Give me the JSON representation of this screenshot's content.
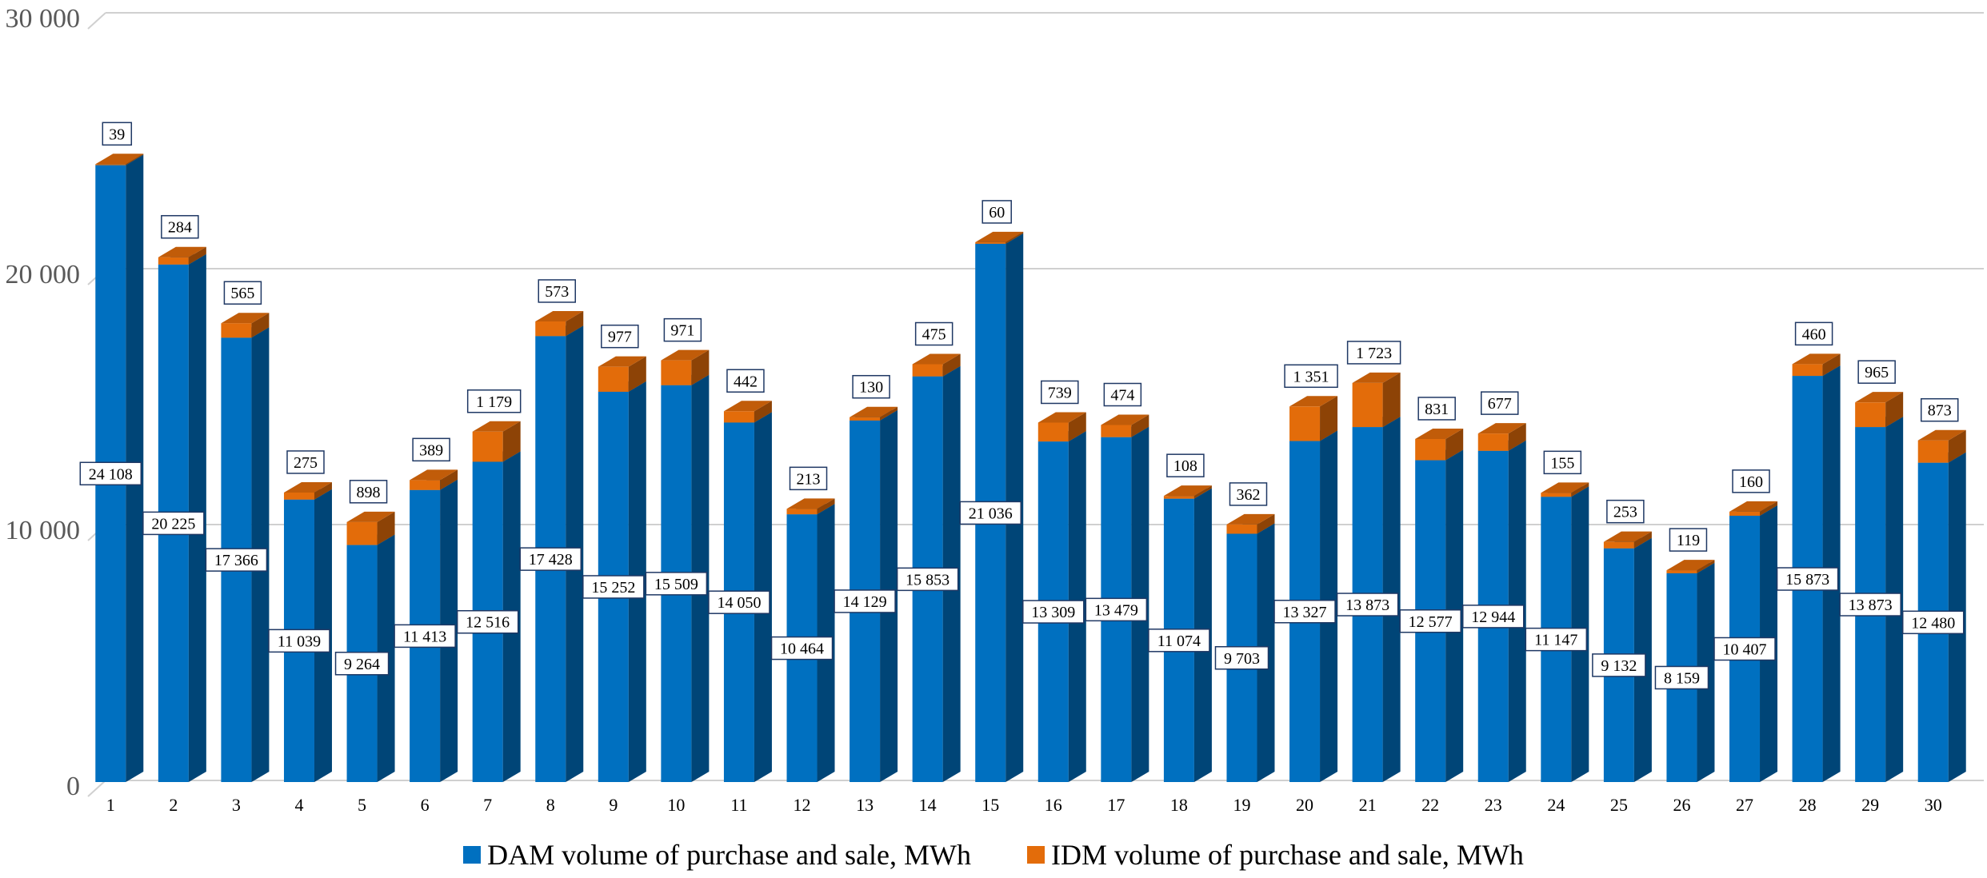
{
  "chart_data": {
    "type": "bar",
    "stacked": true,
    "style": "3d-column",
    "title": "",
    "xlabel": "",
    "ylabel": "",
    "ylim": [
      0,
      30000
    ],
    "yticks": [
      0,
      10000,
      20000,
      30000
    ],
    "ytick_labels": [
      "0",
      "10 000",
      "20 000",
      "30 000"
    ],
    "grid": true,
    "legend_position": "bottom",
    "categories": [
      "1",
      "2",
      "3",
      "4",
      "5",
      "6",
      "7",
      "8",
      "9",
      "10",
      "11",
      "12",
      "13",
      "14",
      "15",
      "16",
      "17",
      "18",
      "19",
      "20",
      "21",
      "22",
      "23",
      "24",
      "25",
      "26",
      "27",
      "28",
      "29",
      "30"
    ],
    "series": [
      {
        "name": "DAM volume of purchase and sale, MWh",
        "color": "#0070C0",
        "values": [
          24108,
          20225,
          17366,
          11039,
          9264,
          11413,
          12516,
          17428,
          15252,
          15509,
          14050,
          10464,
          14129,
          15853,
          21036,
          13309,
          13479,
          11074,
          9703,
          13327,
          13873,
          12577,
          12944,
          11147,
          9132,
          8159,
          10407,
          15873,
          13873,
          12480
        ],
        "labels": [
          "24 108",
          "20 225",
          "17 366",
          "11 039",
          "9 264",
          "11 413",
          "12 516",
          "17 428",
          "15 252",
          "15 509",
          "14 050",
          "10 464",
          "14 129",
          "15 853",
          "21 036",
          "13 309",
          "13 479",
          "11 074",
          "9 703",
          "13 327",
          "13 873",
          "12 577",
          "12 944",
          "11 147",
          "9 132",
          "8 159",
          "10 407",
          "15 873",
          "13 873",
          "12 480"
        ]
      },
      {
        "name": "IDM volume of purchase and sale, MWh",
        "color": "#E36C0A",
        "values": [
          39,
          284,
          565,
          275,
          898,
          389,
          1179,
          573,
          977,
          971,
          442,
          213,
          130,
          475,
          60,
          739,
          474,
          108,
          362,
          1351,
          1723,
          831,
          677,
          155,
          253,
          119,
          160,
          460,
          965,
          873
        ],
        "labels": [
          "39",
          "284",
          "565",
          "275",
          "898",
          "389",
          "1 179",
          "573",
          "977",
          "971",
          "442",
          "213",
          "130",
          "475",
          "60",
          "739",
          "474",
          "108",
          "362",
          "1 351",
          "1 723",
          "831",
          "677",
          "155",
          "253",
          "119",
          "160",
          "460",
          "965",
          "873"
        ]
      }
    ]
  }
}
